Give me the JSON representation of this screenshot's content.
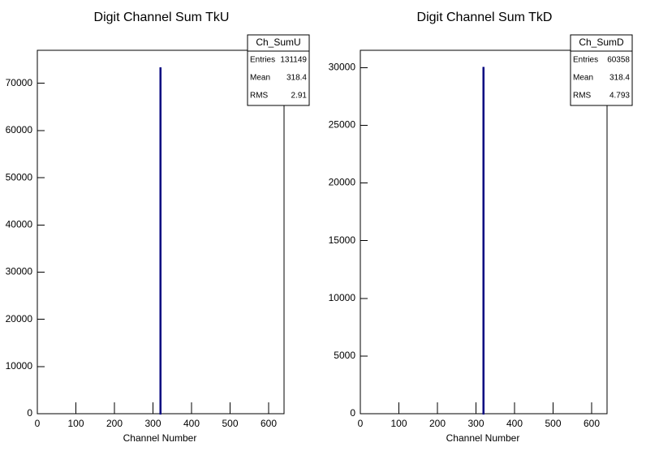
{
  "chart_data": [
    {
      "type": "histogram",
      "title": "Digit Channel Sum TkU",
      "x_label": "Channel Number",
      "bins": [
        318,
        321
      ],
      "counts": [
        73300
      ],
      "color": "#000080",
      "xlim": [
        0,
        640
      ],
      "xticks": [
        0,
        100,
        200,
        300,
        400,
        500,
        600
      ],
      "ylim": [
        0,
        77000
      ],
      "yticks": [
        0,
        10000,
        20000,
        30000,
        40000,
        50000,
        60000,
        70000
      ],
      "stats": {
        "name": "Ch_SumU",
        "rows": [
          {
            "label": "Entries",
            "value": 131149
          },
          {
            "label": "Mean",
            "value": 318.4
          },
          {
            "label": "RMS",
            "value": 2.91
          }
        ]
      }
    },
    {
      "type": "histogram",
      "title": "Digit Channel Sum TkD",
      "x_label": "Channel Number",
      "bins": [
        318,
        321
      ],
      "counts": [
        30000
      ],
      "color": "#000080",
      "xlim": [
        0,
        640
      ],
      "xticks": [
        0,
        100,
        200,
        300,
        400,
        500,
        600
      ],
      "ylim": [
        0,
        31500
      ],
      "yticks": [
        0,
        5000,
        10000,
        15000,
        20000,
        25000,
        30000
      ],
      "stats": {
        "name": "Ch_SumD",
        "rows": [
          {
            "label": "Entries",
            "value": 60358
          },
          {
            "label": "Mean",
            "value": 318.4
          },
          {
            "label": "RMS",
            "value": 4.793
          }
        ]
      }
    }
  ]
}
